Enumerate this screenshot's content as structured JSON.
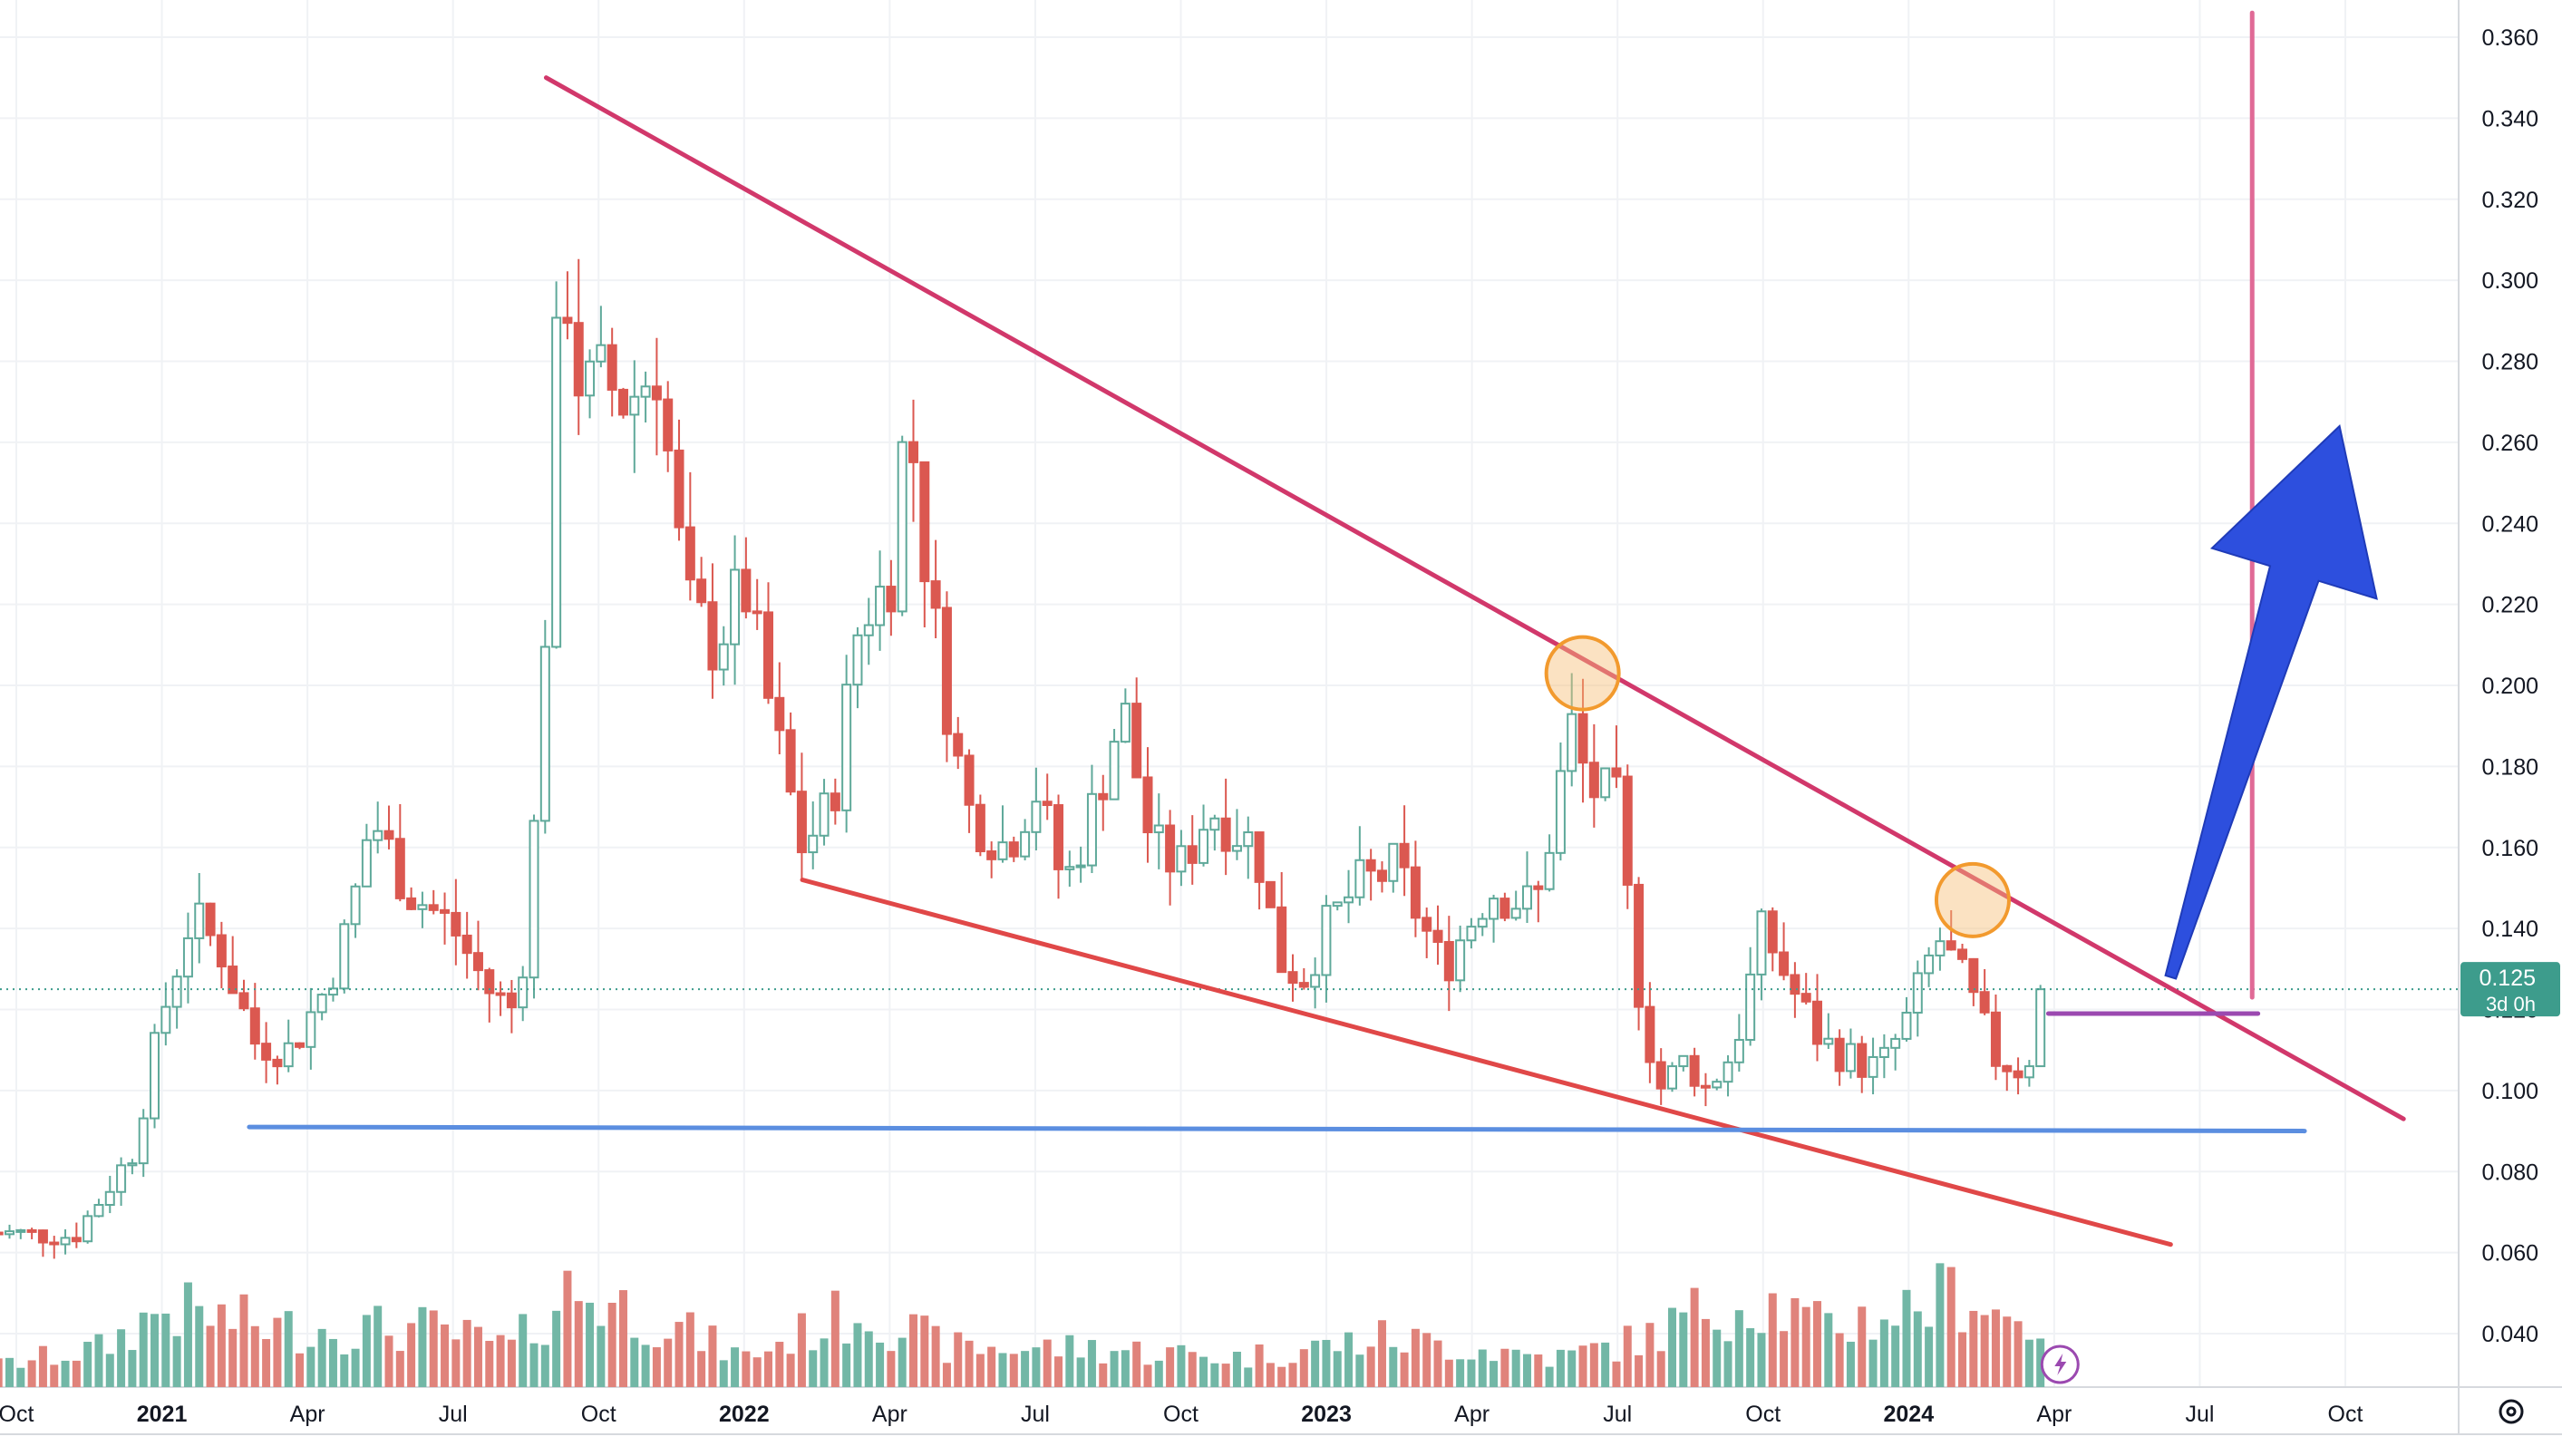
{
  "chart_data": {
    "type": "candlestick",
    "title": "",
    "price_axis": {
      "ticks": [
        "0.360",
        "0.340",
        "0.320",
        "0.300",
        "0.280",
        "0.260",
        "0.240",
        "0.220",
        "0.200",
        "0.180",
        "0.160",
        "0.140",
        "0.120",
        "0.100",
        "0.080",
        "0.060",
        "0.040"
      ],
      "ylim": [
        0.026,
        0.366
      ]
    },
    "time_axis": {
      "labels": [
        {
          "text": "Oct",
          "bold": false,
          "t": 2020.75
        },
        {
          "text": "2021",
          "bold": true,
          "t": 2021.0
        },
        {
          "text": "Apr",
          "bold": false,
          "t": 2021.25
        },
        {
          "text": "Jul",
          "bold": false,
          "t": 2021.5
        },
        {
          "text": "Oct",
          "bold": false,
          "t": 2021.75
        },
        {
          "text": "2022",
          "bold": true,
          "t": 2022.0
        },
        {
          "text": "Apr",
          "bold": false,
          "t": 2022.25
        },
        {
          "text": "Jul",
          "bold": false,
          "t": 2022.5
        },
        {
          "text": "Oct",
          "bold": false,
          "t": 2022.75
        },
        {
          "text": "2023",
          "bold": true,
          "t": 2023.0
        },
        {
          "text": "Apr",
          "bold": false,
          "t": 2023.25
        },
        {
          "text": "Jul",
          "bold": false,
          "t": 2023.5
        },
        {
          "text": "Oct",
          "bold": false,
          "t": 2023.75
        },
        {
          "text": "2024",
          "bold": true,
          "t": 2024.0
        },
        {
          "text": "Apr",
          "bold": false,
          "t": 2024.25
        },
        {
          "text": "Jul",
          "bold": false,
          "t": 2024.5
        },
        {
          "text": "Oct",
          "bold": false,
          "t": 2024.75
        }
      ]
    },
    "last_price": {
      "value": 0.125,
      "label": "0.125",
      "countdown": "3d 0h"
    },
    "colors": {
      "up": "#5fa99a",
      "down": "#db5850",
      "upVol": "#72b7a6",
      "downVol": "#e0837b",
      "grid": "#f0f2f5",
      "lastPrice": "#3d9c8c"
    },
    "anchors": [
      [
        2020.7,
        0.065
      ],
      [
        2020.85,
        0.064
      ],
      [
        2020.95,
        0.085
      ],
      [
        2021.0,
        0.118
      ],
      [
        2021.05,
        0.143
      ],
      [
        2021.1,
        0.135
      ],
      [
        2021.16,
        0.112
      ],
      [
        2021.22,
        0.11
      ],
      [
        2021.28,
        0.125
      ],
      [
        2021.32,
        0.14
      ],
      [
        2021.36,
        0.168
      ],
      [
        2021.42,
        0.15
      ],
      [
        2021.5,
        0.14
      ],
      [
        2021.56,
        0.125
      ],
      [
        2021.6,
        0.12
      ],
      [
        2021.63,
        0.14
      ],
      [
        2021.66,
        0.22
      ],
      [
        2021.68,
        0.288
      ],
      [
        2021.7,
        0.3
      ],
      [
        2021.72,
        0.27
      ],
      [
        2021.76,
        0.275
      ],
      [
        2021.8,
        0.27
      ],
      [
        2021.85,
        0.28
      ],
      [
        2021.9,
        0.22
      ],
      [
        2021.95,
        0.21
      ],
      [
        2022.0,
        0.225
      ],
      [
        2022.05,
        0.19
      ],
      [
        2022.1,
        0.16
      ],
      [
        2022.15,
        0.17
      ],
      [
        2022.2,
        0.218
      ],
      [
        2022.25,
        0.225
      ],
      [
        2022.28,
        0.27
      ],
      [
        2022.32,
        0.22
      ],
      [
        2022.38,
        0.17
      ],
      [
        2022.45,
        0.16
      ],
      [
        2022.5,
        0.175
      ],
      [
        2022.55,
        0.15
      ],
      [
        2022.6,
        0.17
      ],
      [
        2022.65,
        0.195
      ],
      [
        2022.7,
        0.16
      ],
      [
        2022.75,
        0.155
      ],
      [
        2022.8,
        0.17
      ],
      [
        2022.88,
        0.16
      ],
      [
        2022.92,
        0.132
      ],
      [
        2022.96,
        0.128
      ],
      [
        2023.0,
        0.14
      ],
      [
        2023.05,
        0.15
      ],
      [
        2023.12,
        0.155
      ],
      [
        2023.2,
        0.13
      ],
      [
        2023.28,
        0.15
      ],
      [
        2023.36,
        0.145
      ],
      [
        2023.42,
        0.19
      ],
      [
        2023.45,
        0.175
      ],
      [
        2023.5,
        0.17
      ],
      [
        2023.53,
        0.13
      ],
      [
        2023.57,
        0.1
      ],
      [
        2023.62,
        0.108
      ],
      [
        2023.65,
        0.1
      ],
      [
        2023.7,
        0.11
      ],
      [
        2023.75,
        0.14
      ],
      [
        2023.8,
        0.125
      ],
      [
        2023.85,
        0.112
      ],
      [
        2023.9,
        0.108
      ],
      [
        2023.95,
        0.105
      ],
      [
        2024.0,
        0.118
      ],
      [
        2024.05,
        0.138
      ],
      [
        2024.1,
        0.125
      ],
      [
        2024.15,
        0.108
      ],
      [
        2024.2,
        0.105
      ],
      [
        2024.24,
        0.125
      ]
    ],
    "volume_anchors": [
      [
        2020.7,
        2
      ],
      [
        2020.9,
        4
      ],
      [
        2021.0,
        8
      ],
      [
        2021.2,
        6
      ],
      [
        2021.45,
        6
      ],
      [
        2021.6,
        4
      ],
      [
        2021.7,
        10
      ],
      [
        2021.85,
        7
      ],
      [
        2022.0,
        3
      ],
      [
        2022.2,
        8
      ],
      [
        2022.35,
        4
      ],
      [
        2022.6,
        4
      ],
      [
        2022.85,
        3
      ],
      [
        2023.1,
        5
      ],
      [
        2023.4,
        3
      ],
      [
        2023.55,
        5
      ],
      [
        2023.65,
        8
      ],
      [
        2023.75,
        9
      ],
      [
        2023.85,
        6
      ],
      [
        2024.0,
        8
      ],
      [
        2024.1,
        10
      ],
      [
        2024.2,
        6
      ],
      [
        2024.24,
        7
      ]
    ],
    "trendlines": [
      {
        "name": "upper-resistance",
        "color": "#d1386b",
        "from": [
          2021.66,
          0.35
        ],
        "to": [
          2024.85,
          0.093
        ]
      },
      {
        "name": "lower-support",
        "color": "#e04848",
        "from": [
          2022.1,
          0.152
        ],
        "to": [
          2024.45,
          0.062
        ]
      },
      {
        "name": "horizontal-support",
        "color": "#5b8ee0",
        "from": [
          2021.15,
          0.091
        ],
        "to": [
          2024.68,
          0.09
        ]
      },
      {
        "name": "short-level",
        "color": "#9b49b0",
        "from": [
          2024.24,
          0.119
        ],
        "to": [
          2024.6,
          0.119
        ]
      },
      {
        "name": "vertical-marker",
        "color": "#e06a96",
        "from": [
          2024.59,
          0.366
        ],
        "to": [
          2024.59,
          0.123
        ]
      }
    ],
    "circles": [
      {
        "t": 2023.44,
        "p": 0.203
      },
      {
        "t": 2024.11,
        "p": 0.147
      }
    ],
    "arrow": {
      "color": "#2d4fde",
      "from": [
        2024.45,
        0.128
      ],
      "to": [
        2024.74,
        0.264
      ]
    }
  },
  "icons": {
    "lightning": "lightning-icon",
    "settings": "settings-icon"
  }
}
